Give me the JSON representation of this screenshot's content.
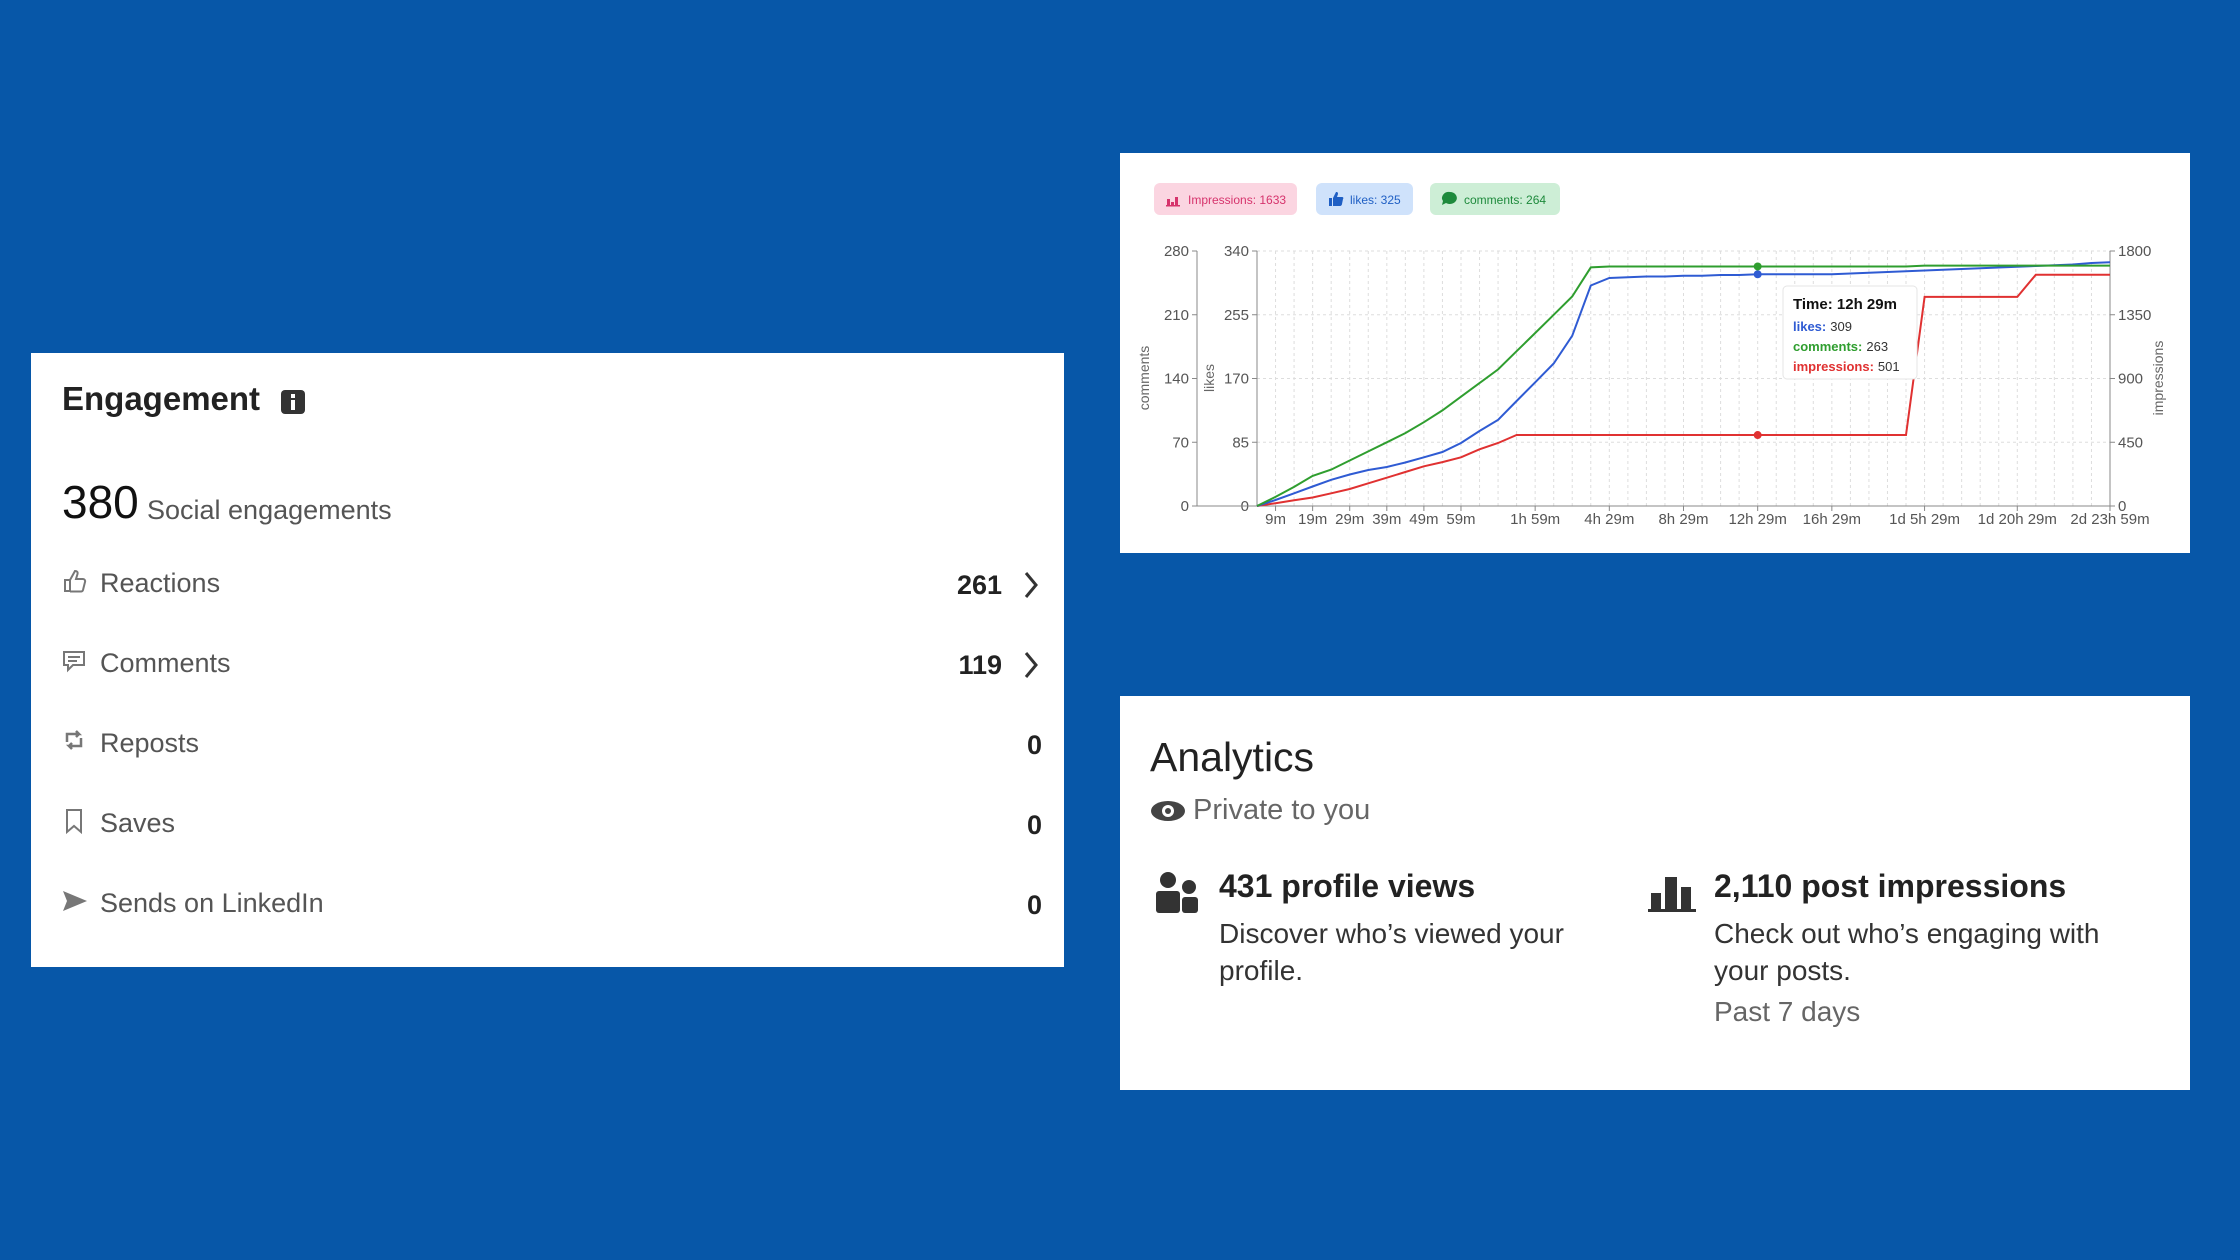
{
  "engagement": {
    "title": "Engagement",
    "total": "380",
    "total_label": "Social engagements",
    "rows": [
      {
        "label": "Reactions",
        "value": "261"
      },
      {
        "label": "Comments",
        "value": "119"
      },
      {
        "label": "Reposts",
        "value": "0"
      },
      {
        "label": "Saves",
        "value": "0"
      },
      {
        "label": "Sends on LinkedIn",
        "value": "0"
      }
    ]
  },
  "analytics": {
    "title": "Analytics",
    "subtitle": "Private to you",
    "stats": [
      {
        "headline": "431 profile views",
        "description": "Discover who’s viewed your profile."
      },
      {
        "headline": "2,110 post impressions",
        "description": "Check out who’s engaging with your posts.",
        "note": "Past 7 days"
      }
    ]
  },
  "chart_data": {
    "type": "line",
    "legend": [
      {
        "label": "Impressions: 1633",
        "color": "#d6336c",
        "background": "#fbd5e1"
      },
      {
        "label": "likes: 325",
        "color": "#1f5fc4",
        "background": "#cfe2fb"
      },
      {
        "label": "comments: 264",
        "color": "#1e8a3c",
        "background": "#cdeed6"
      }
    ],
    "categories": [
      null,
      "9m",
      null,
      "19m",
      null,
      "29m",
      null,
      "39m",
      null,
      "49m",
      null,
      "59m",
      null,
      null,
      null,
      "1h 59m",
      null,
      null,
      null,
      "4h 29m",
      null,
      null,
      null,
      "8h 29m",
      null,
      null,
      null,
      "12h 29m",
      null,
      null,
      null,
      "16h 29m",
      null,
      null,
      null,
      null,
      "1d 5h 29m",
      null,
      null,
      null,
      null,
      "1d 20h 29m",
      null,
      null,
      null,
      null,
      "2d 23h 59m"
    ],
    "series": [
      {
        "name": "impressions",
        "color": "#e03131",
        "axis": "y2",
        "values": [
          0,
          20,
          40,
          60,
          90,
          120,
          160,
          200,
          240,
          280,
          310,
          344,
          400,
          445,
          501,
          501,
          501,
          501,
          501,
          501,
          501,
          501,
          501,
          501,
          501,
          501,
          501,
          501,
          501,
          501,
          501,
          501,
          501,
          501,
          501,
          501,
          1476,
          1476,
          1476,
          1476,
          1476,
          1476,
          1633,
          1633,
          1633,
          1633,
          1633
        ]
      },
      {
        "name": "likes",
        "color": "#2f5bd3",
        "axis": "y",
        "values": [
          0,
          8,
          17,
          26,
          35,
          42,
          48,
          52,
          58,
          65,
          72,
          84,
          100,
          115,
          140,
          165,
          190,
          227,
          294,
          304,
          305,
          306,
          306,
          307,
          307,
          308,
          308,
          309,
          309,
          309,
          309,
          309,
          310,
          311,
          312,
          313,
          314,
          315,
          316,
          317,
          318,
          319,
          320,
          321,
          322,
          324,
          325
        ]
      },
      {
        "name": "comments",
        "color": "#2f9e2f",
        "axis": "y3",
        "values": [
          0,
          10,
          21,
          33,
          40,
          50,
          60,
          70,
          80,
          92,
          105,
          120,
          135,
          150,
          170,
          190,
          210,
          230,
          262,
          263,
          263,
          263,
          263,
          263,
          263,
          263,
          263,
          263,
          263,
          263,
          263,
          263,
          263,
          263,
          263,
          263,
          264,
          264,
          264,
          264,
          264,
          264,
          264,
          264,
          264,
          264,
          264
        ]
      }
    ],
    "ylabel": "likes",
    "ylim": [
      0,
      340
    ],
    "yticks": [
      0,
      85,
      170,
      255,
      340
    ],
    "y2label": "impressions",
    "y2lim": [
      0,
      1800
    ],
    "y2ticks": [
      0,
      450,
      900,
      1350,
      1800
    ],
    "y3label": "comments",
    "y3lim": [
      0,
      280
    ],
    "y3ticks": [
      0,
      70,
      140,
      210,
      280
    ],
    "grid": true,
    "tooltip": {
      "title": "Time: 12h 29m",
      "rows": [
        {
          "label": "likes:",
          "value": 309
        },
        {
          "label": "comments:",
          "value": 263
        },
        {
          "label": "impressions:",
          "value": 501
        }
      ]
    }
  }
}
